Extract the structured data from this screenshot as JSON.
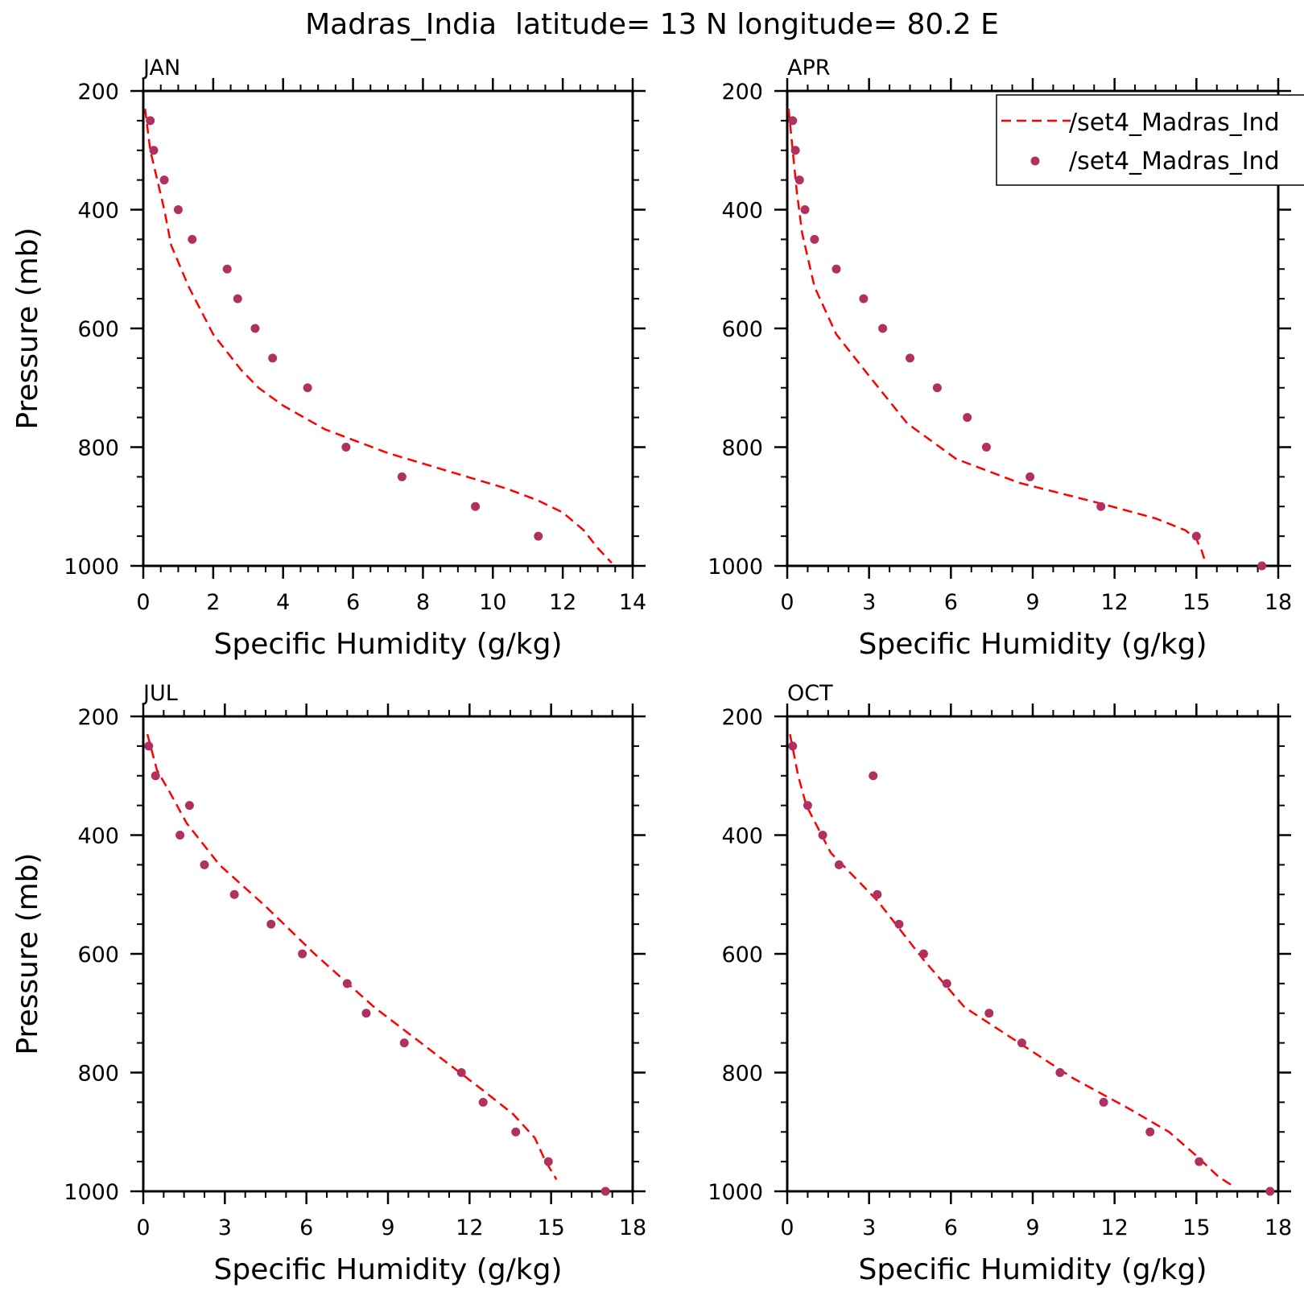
{
  "figure": {
    "title": "Madras_India  latitude= 13 N longitude= 80.2 E"
  },
  "legend": {
    "placement": "top-right of APR panel",
    "entries": [
      {
        "label": "/set4_Madras_Ind",
        "style": "dashed-line",
        "color": "#ff0000"
      },
      {
        "label": "/set4_Madras_Ind",
        "style": "dot",
        "color": "#b03060"
      }
    ]
  },
  "colors": {
    "line": "#ff0000",
    "dots": "#b03060",
    "axes": "#000000"
  },
  "chart_data": [
    {
      "type": "line+scatter",
      "panel_label": "JAN",
      "xlabel": "Specific Humidity (g/kg)",
      "ylabel": "Pressure (mb)",
      "xlim": [
        0,
        14
      ],
      "ylim": [
        200,
        1000
      ],
      "y_inverted": true,
      "xticks": [
        0,
        2,
        4,
        6,
        8,
        10,
        12,
        14
      ],
      "yticks": [
        200,
        400,
        600,
        800,
        1000
      ],
      "line": [
        [
          0.05,
          230
        ],
        [
          0.2,
          300
        ],
        [
          0.4,
          350
        ],
        [
          0.6,
          400
        ],
        [
          0.8,
          460
        ],
        [
          1.3,
          530
        ],
        [
          2.0,
          610
        ],
        [
          2.8,
          670
        ],
        [
          3.3,
          700
        ],
        [
          4.0,
          730
        ],
        [
          5.2,
          770
        ],
        [
          7.0,
          810
        ],
        [
          8.7,
          840
        ],
        [
          10.4,
          870
        ],
        [
          11.3,
          890
        ],
        [
          12.0,
          910
        ],
        [
          12.6,
          940
        ],
        [
          13.0,
          970
        ],
        [
          13.4,
          995
        ]
      ],
      "points": [
        [
          0.2,
          250
        ],
        [
          0.3,
          300
        ],
        [
          0.6,
          350
        ],
        [
          1.0,
          400
        ],
        [
          1.4,
          450
        ],
        [
          2.4,
          500
        ],
        [
          2.7,
          550
        ],
        [
          3.2,
          600
        ],
        [
          3.7,
          650
        ],
        [
          4.7,
          700
        ],
        [
          5.8,
          800
        ],
        [
          7.4,
          850
        ],
        [
          9.5,
          900
        ],
        [
          11.3,
          950
        ]
      ]
    },
    {
      "type": "line+scatter",
      "panel_label": "APR",
      "xlabel": "Specific Humidity (g/kg)",
      "ylabel": "",
      "xlim": [
        0,
        18
      ],
      "ylim": [
        200,
        1000
      ],
      "y_inverted": true,
      "xticks": [
        0,
        3,
        6,
        9,
        12,
        15,
        18
      ],
      "yticks": [
        200,
        400,
        600,
        800,
        1000
      ],
      "line": [
        [
          0.05,
          230
        ],
        [
          0.2,
          300
        ],
        [
          0.35,
          370
        ],
        [
          0.55,
          440
        ],
        [
          1.0,
          530
        ],
        [
          1.8,
          610
        ],
        [
          3.0,
          680
        ],
        [
          4.4,
          760
        ],
        [
          6.2,
          820
        ],
        [
          8.5,
          860
        ],
        [
          11.5,
          895
        ],
        [
          13.5,
          920
        ],
        [
          14.6,
          940
        ],
        [
          15.0,
          955
        ],
        [
          15.2,
          975
        ],
        [
          15.3,
          990
        ]
      ],
      "points": [
        [
          0.2,
          250
        ],
        [
          0.3,
          300
        ],
        [
          0.45,
          350
        ],
        [
          0.65,
          400
        ],
        [
          1.0,
          450
        ],
        [
          1.8,
          500
        ],
        [
          2.8,
          550
        ],
        [
          3.5,
          600
        ],
        [
          4.5,
          650
        ],
        [
          5.5,
          700
        ],
        [
          6.6,
          750
        ],
        [
          7.3,
          800
        ],
        [
          8.9,
          850
        ],
        [
          11.5,
          900
        ],
        [
          15.0,
          950
        ],
        [
          17.4,
          1000
        ]
      ]
    },
    {
      "type": "line+scatter",
      "panel_label": "JUL",
      "xlabel": "Specific Humidity (g/kg)",
      "ylabel": "Pressure (mb)",
      "xlim": [
        0,
        18
      ],
      "ylim": [
        200,
        1000
      ],
      "y_inverted": true,
      "xticks": [
        0,
        3,
        6,
        9,
        12,
        15,
        18
      ],
      "yticks": [
        200,
        400,
        600,
        800,
        1000
      ],
      "line": [
        [
          0.15,
          230
        ],
        [
          0.5,
          290
        ],
        [
          1.0,
          330
        ],
        [
          1.6,
          380
        ],
        [
          2.8,
          450
        ],
        [
          4.5,
          520
        ],
        [
          6.3,
          600
        ],
        [
          8.5,
          690
        ],
        [
          10.5,
          760
        ],
        [
          12.5,
          830
        ],
        [
          13.6,
          870
        ],
        [
          14.4,
          910
        ],
        [
          14.8,
          950
        ],
        [
          15.2,
          980
        ]
      ],
      "points": [
        [
          0.2,
          250
        ],
        [
          0.45,
          300
        ],
        [
          1.7,
          350
        ],
        [
          1.35,
          400
        ],
        [
          2.25,
          450
        ],
        [
          3.35,
          500
        ],
        [
          4.7,
          550
        ],
        [
          5.85,
          600
        ],
        [
          7.5,
          650
        ],
        [
          8.2,
          700
        ],
        [
          9.6,
          750
        ],
        [
          11.7,
          800
        ],
        [
          12.5,
          850
        ],
        [
          13.7,
          900
        ],
        [
          14.9,
          950
        ],
        [
          17.0,
          1000
        ]
      ]
    },
    {
      "type": "line+scatter",
      "panel_label": "OCT",
      "xlabel": "Specific Humidity (g/kg)",
      "ylabel": "",
      "xlim": [
        0,
        18
      ],
      "ylim": [
        200,
        1000
      ],
      "y_inverted": true,
      "xticks": [
        0,
        3,
        6,
        9,
        12,
        15,
        18
      ],
      "yticks": [
        200,
        400,
        600,
        800,
        1000
      ],
      "line": [
        [
          0.1,
          230
        ],
        [
          0.4,
          300
        ],
        [
          0.7,
          350
        ],
        [
          1.6,
          430
        ],
        [
          3.3,
          510
        ],
        [
          5.0,
          610
        ],
        [
          6.5,
          690
        ],
        [
          8.5,
          750
        ],
        [
          10.5,
          810
        ],
        [
          12.5,
          860
        ],
        [
          14.0,
          900
        ],
        [
          15.0,
          940
        ],
        [
          15.8,
          975
        ],
        [
          16.3,
          990
        ]
      ],
      "points": [
        [
          0.2,
          250
        ],
        [
          3.15,
          300
        ],
        [
          0.75,
          350
        ],
        [
          1.3,
          400
        ],
        [
          1.9,
          450
        ],
        [
          3.3,
          500
        ],
        [
          4.1,
          550
        ],
        [
          5.0,
          600
        ],
        [
          5.85,
          650
        ],
        [
          7.4,
          700
        ],
        [
          8.6,
          750
        ],
        [
          10.0,
          800
        ],
        [
          11.6,
          850
        ],
        [
          13.3,
          900
        ],
        [
          15.1,
          950
        ],
        [
          17.7,
          1000
        ]
      ]
    }
  ]
}
